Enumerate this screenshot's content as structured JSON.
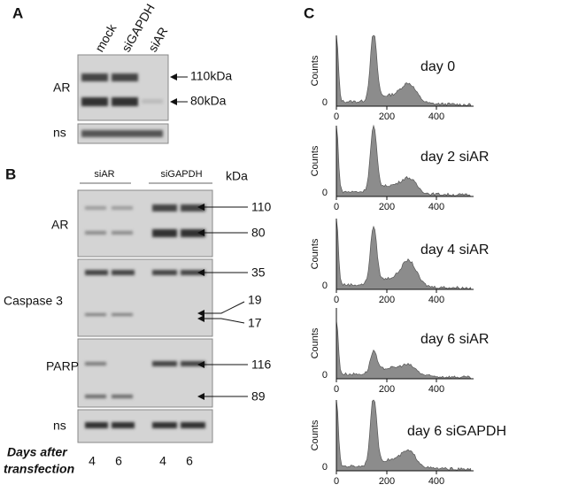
{
  "panel_a": {
    "label": "A",
    "lanes": [
      "mock",
      "siGAPDH",
      "siAR"
    ],
    "rows": [
      "AR",
      "ns"
    ],
    "markers": [
      "110kDa",
      "80kDa"
    ]
  },
  "panel_b": {
    "label": "B",
    "groups": [
      "siAR",
      "siGAPDH"
    ],
    "unit": "kDa",
    "rows": [
      "AR",
      "Caspase 3",
      "PARP",
      "ns"
    ],
    "markers": [
      "110",
      "80",
      "35",
      "19",
      "17",
      "116",
      "89"
    ],
    "footer": [
      "Days after",
      "transfection"
    ],
    "days": [
      "4",
      "6",
      "4",
      "6"
    ]
  },
  "panel_c": {
    "label": "C",
    "y_label": "Counts",
    "y_tick": "0",
    "x_ticks": [
      "0",
      "200",
      "400"
    ],
    "plots": [
      "day 0",
      "day 2 siAR",
      "day 4 siAR",
      "day 6 siAR",
      "day 6 siGAPDH"
    ]
  }
}
